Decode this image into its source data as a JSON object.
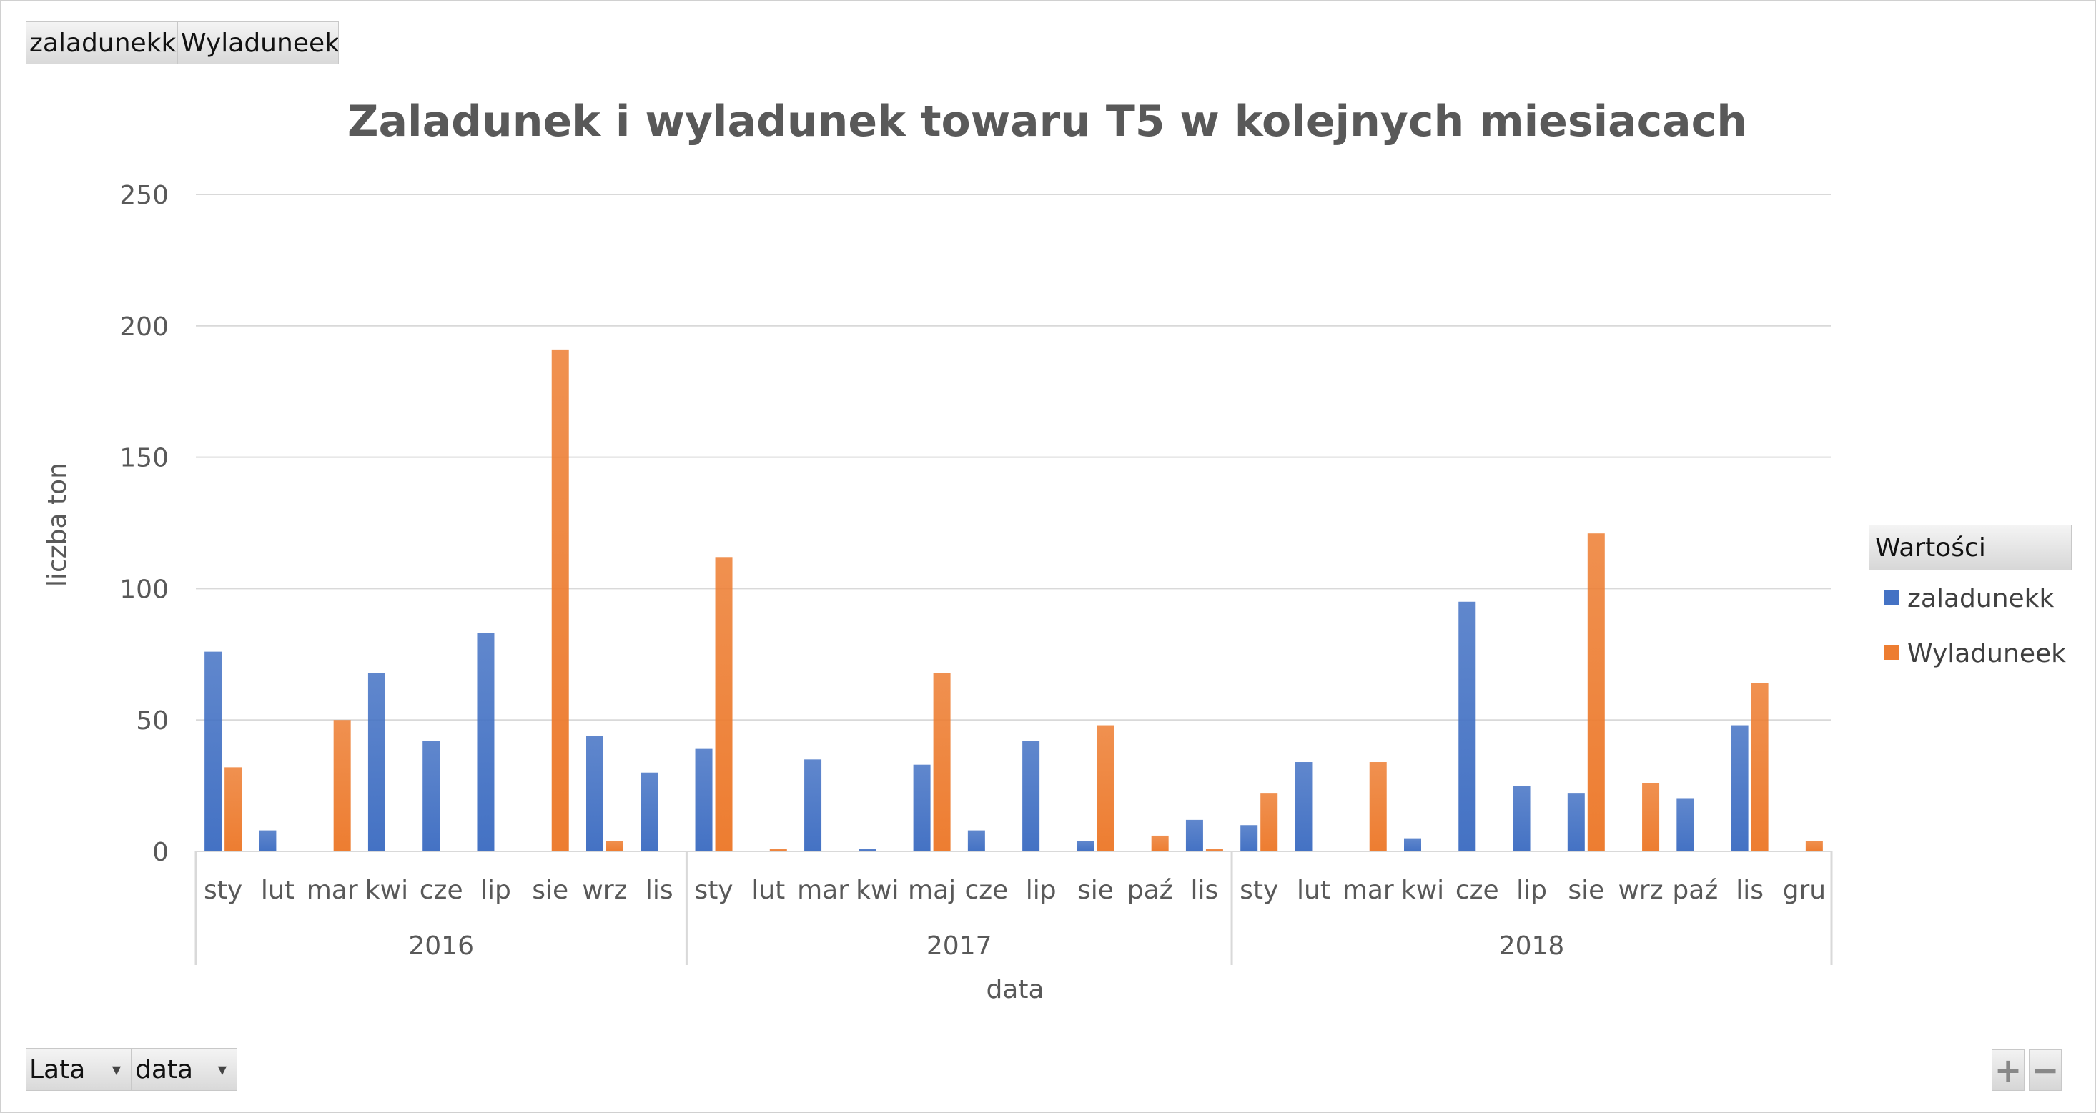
{
  "filter_buttons": {
    "top": [
      "zaladunekk",
      "Wyladuneek"
    ],
    "bottom": [
      "Lata",
      "data"
    ]
  },
  "zoom": {
    "plus": "+",
    "minus": "−"
  },
  "legend": {
    "title": "Wartości",
    "items": [
      {
        "label": "zaladunekk",
        "color": "#4472c4"
      },
      {
        "label": "Wyladuneek",
        "color": "#ed7d31"
      }
    ]
  },
  "chart_data": {
    "type": "bar",
    "title": "Zaladunek i wyladunek towaru T5 w kolejnych miesiacach",
    "xlabel": "data",
    "ylabel": "liczba ton",
    "ylim": [
      0,
      250
    ],
    "yticks": [
      0,
      50,
      100,
      150,
      200,
      250
    ],
    "grid": true,
    "legend_position": "right",
    "groups": [
      {
        "name": "2016",
        "months": [
          "sty",
          "lut",
          "mar",
          "kwi",
          "cze",
          "lip",
          "sie",
          "wrz",
          "lis"
        ]
      },
      {
        "name": "2017",
        "months": [
          "sty",
          "lut",
          "mar",
          "kwi",
          "maj",
          "cze",
          "lip",
          "sie",
          "paź",
          "lis"
        ]
      },
      {
        "name": "2018",
        "months": [
          "sty",
          "lut",
          "mar",
          "kwi",
          "cze",
          "lip",
          "sie",
          "wrz",
          "paź",
          "lis",
          "gru"
        ]
      }
    ],
    "series": [
      {
        "name": "zaladunekk",
        "color": "#4472c4",
        "values": [
          76,
          8,
          0,
          68,
          42,
          83,
          0,
          44,
          30,
          39,
          0,
          35,
          1,
          33,
          8,
          42,
          4,
          0,
          12,
          10,
          34,
          0,
          5,
          95,
          25,
          22,
          0,
          20,
          48,
          0
        ]
      },
      {
        "name": "Wyladuneek",
        "color": "#ed7d31",
        "values": [
          32,
          0,
          50,
          0,
          0,
          0,
          191,
          4,
          0,
          112,
          1,
          0,
          0,
          68,
          0,
          0,
          48,
          6,
          1,
          22,
          0,
          34,
          0,
          0,
          0,
          121,
          26,
          0,
          64,
          4
        ]
      }
    ]
  }
}
